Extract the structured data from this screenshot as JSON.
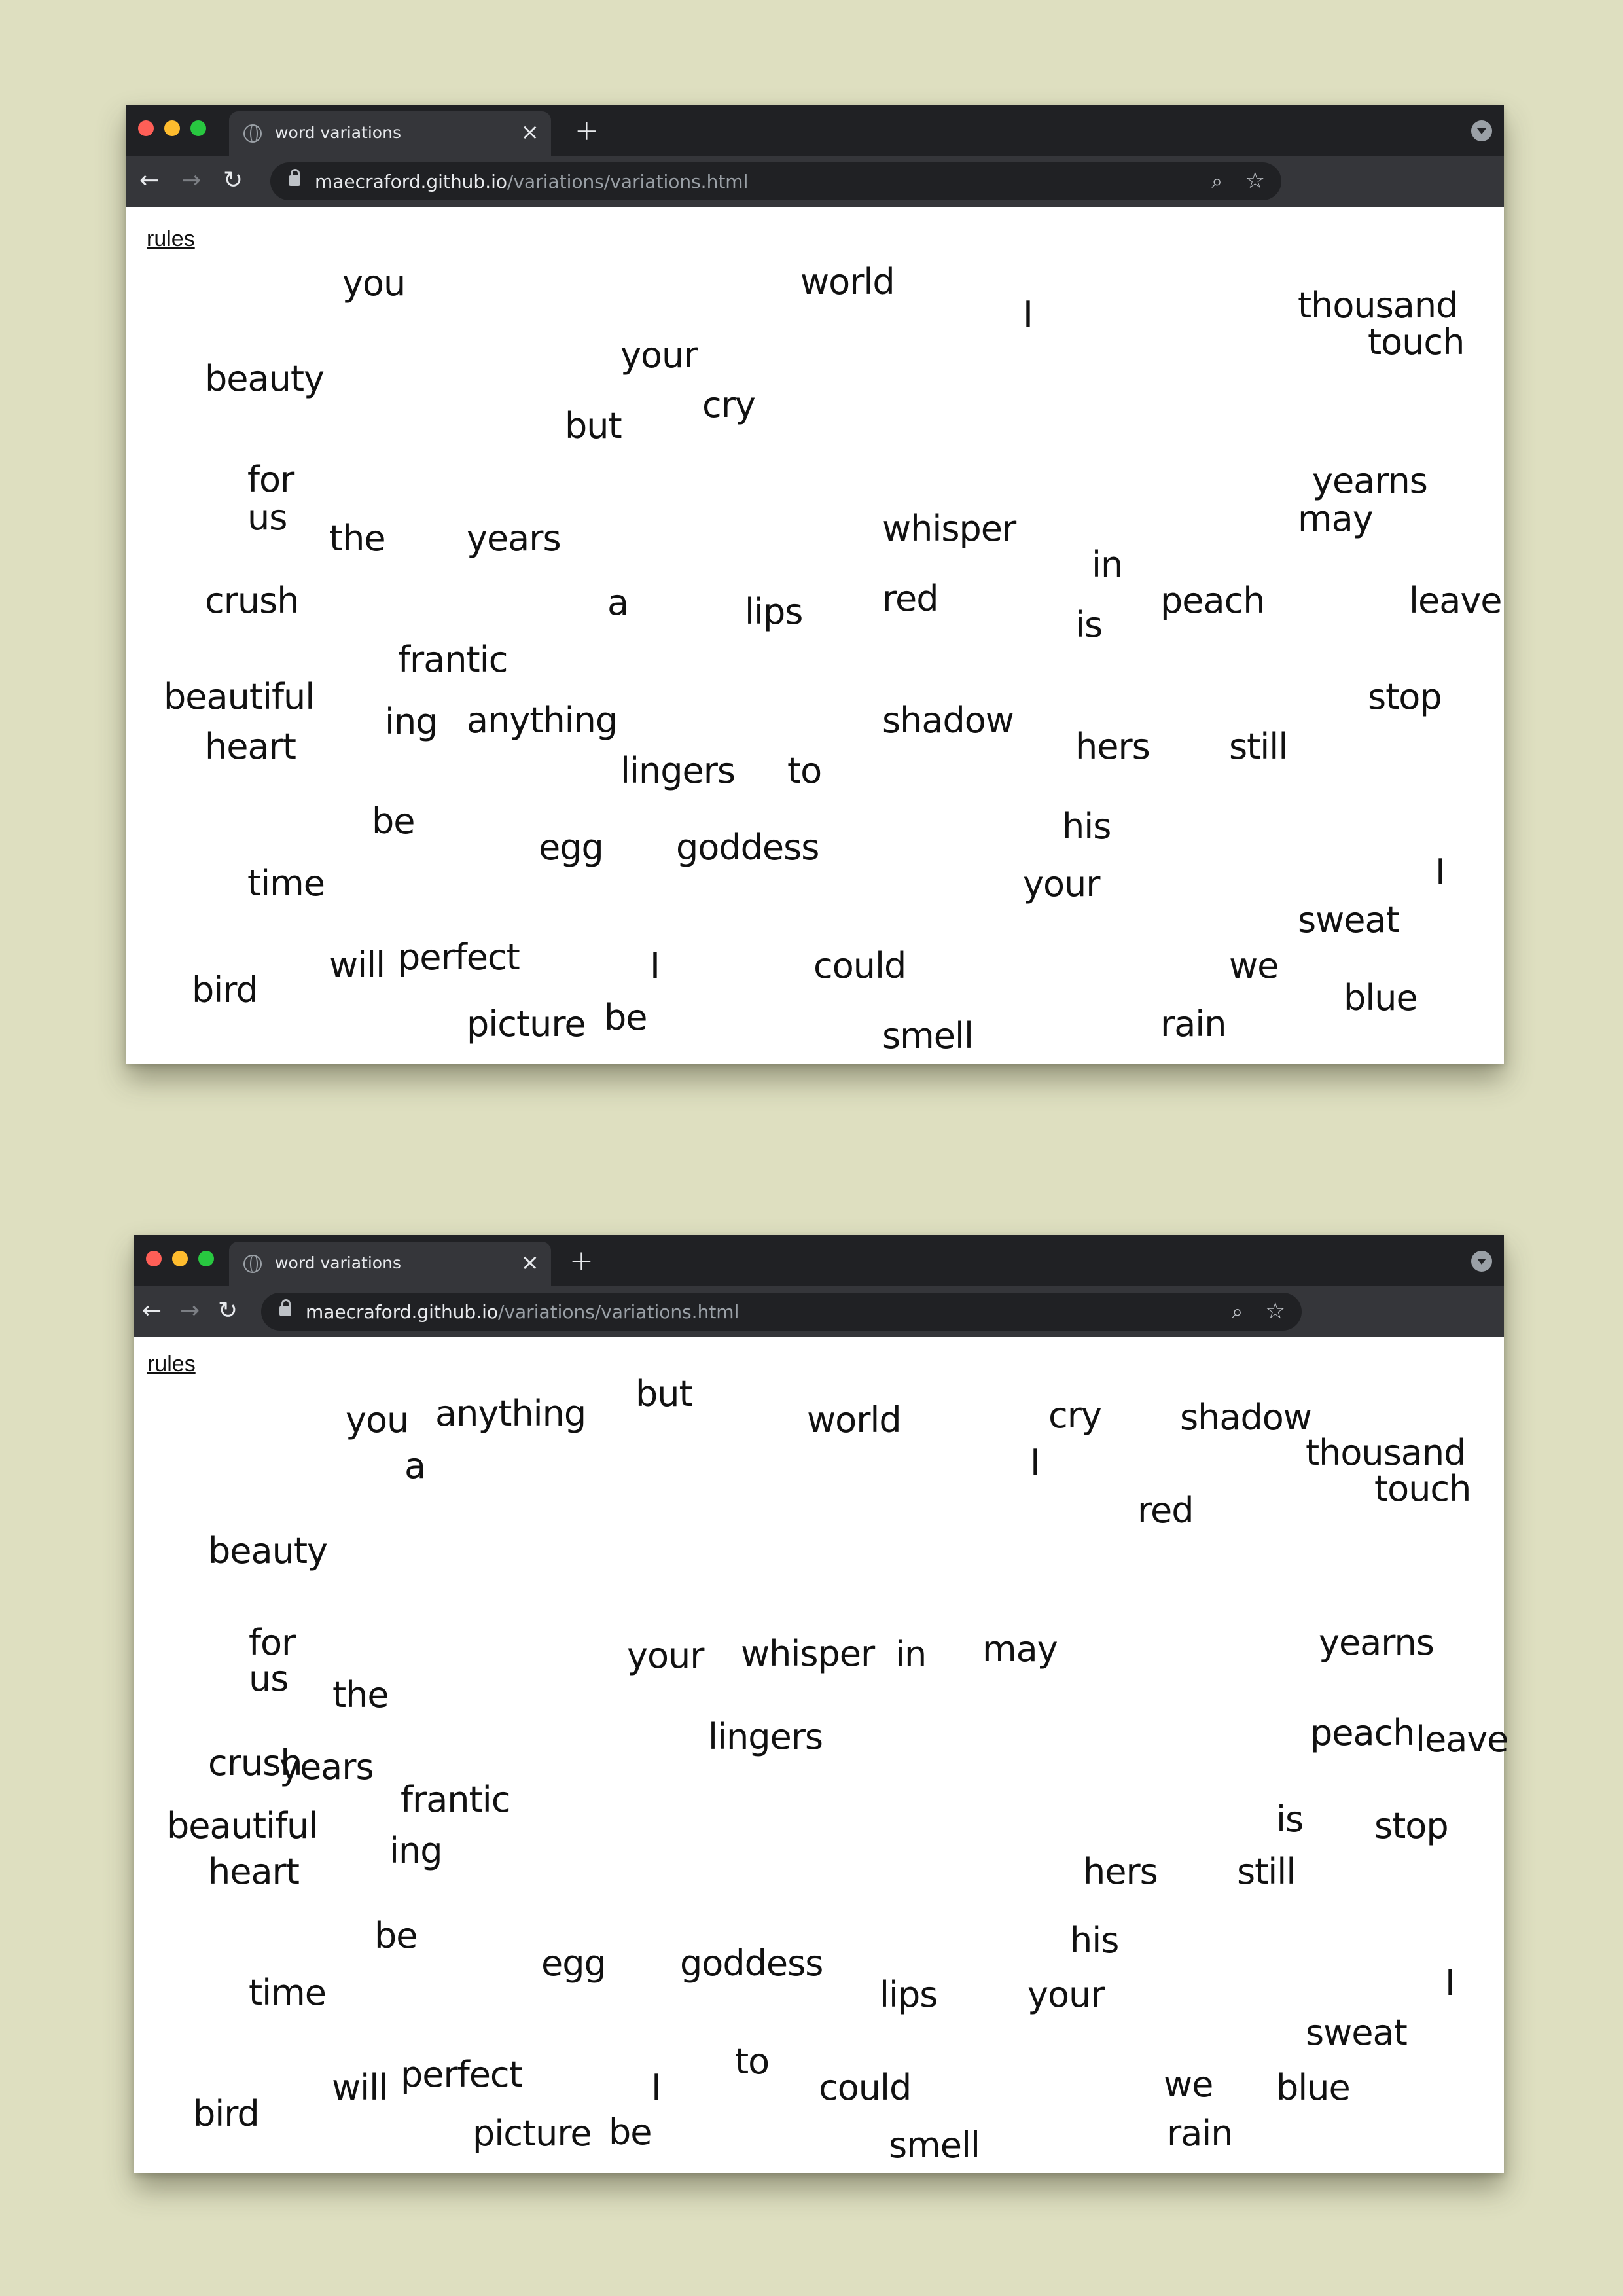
{
  "colors": {
    "page_background": "#dedfc0",
    "tab_bar": "#202124",
    "toolbar": "#35363a",
    "close": "#ff5f57",
    "minimize": "#febc2e",
    "maximize": "#28c840"
  },
  "windows": [
    {
      "tab_title": "word variations",
      "url_host": "maecraford.github.io",
      "url_path": "/variations/variations.html",
      "rules_label": "rules",
      "words": [
        "you",
        "world",
        "I",
        "thousand",
        "touch",
        "your",
        "beauty",
        "cry",
        "but",
        "for",
        "yearns",
        "us",
        "may",
        "the",
        "years",
        "whisper",
        "in",
        "crush",
        "a",
        "lips",
        "red",
        "is",
        "peach",
        "leave",
        "frantic",
        "beautiful",
        "stop",
        "ing",
        "anything",
        "shadow",
        "heart",
        "hers",
        "still",
        "lingers",
        "to",
        "be",
        "his",
        "egg",
        "goddess",
        "time",
        "your",
        "I",
        "sweat",
        "perfect",
        "will",
        "I",
        "could",
        "we",
        "bird",
        "blue",
        "be",
        "picture",
        "rain",
        "smell"
      ]
    },
    {
      "tab_title": "word variations",
      "url_host": "maecraford.github.io",
      "url_path": "/variations/variations.html",
      "rules_label": "rules",
      "words": [
        "but",
        "cry",
        "you",
        "anything",
        "world",
        "shadow",
        "thousand",
        "a",
        "I",
        "touch",
        "red",
        "beauty",
        "for",
        "yearns",
        "your",
        "whisper",
        "in",
        "may",
        "us",
        "the",
        "lingers",
        "peach",
        "leave",
        "crush",
        "years",
        "frantic",
        "is",
        "beautiful",
        "stop",
        "ing",
        "heart",
        "hers",
        "still",
        "be",
        "his",
        "egg",
        "goddess",
        "time",
        "lips",
        "your",
        "I",
        "sweat",
        "to",
        "perfect",
        "will",
        "I",
        "could",
        "we",
        "blue",
        "bird",
        "be",
        "picture",
        "rain",
        "smell"
      ]
    }
  ]
}
